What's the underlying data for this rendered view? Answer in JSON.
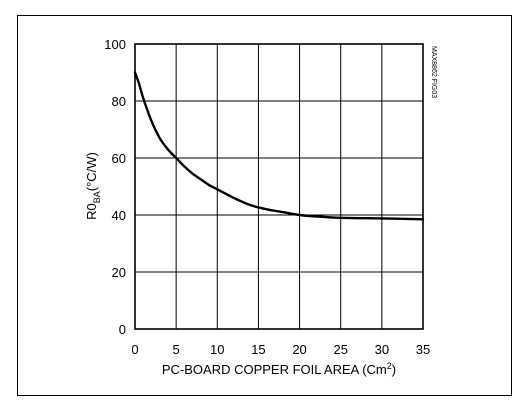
{
  "chart_data": {
    "type": "line",
    "xlabel": "PC-BOARD COPPER FOIL AREA (Cm",
    "xlabel_superscript": "2",
    "xlabel_suffix": ")",
    "ylabel_main": "R0",
    "ylabel_subscript": "BA",
    "ylabel_unit": "(°C/W)",
    "figure_code": "MAX8862 FIG03",
    "xlim": [
      0,
      35
    ],
    "ylim": [
      0,
      100
    ],
    "x_ticks": [
      0,
      5,
      10,
      15,
      20,
      25,
      30,
      35
    ],
    "y_ticks": [
      0,
      20,
      40,
      60,
      80,
      100
    ],
    "x_tick_labels": [
      "0",
      "5",
      "10",
      "15",
      "20",
      "25",
      "30",
      "35"
    ],
    "y_tick_labels": [
      "0",
      "20",
      "40",
      "60",
      "80",
      "100"
    ],
    "grid": true,
    "line_color": "#000000",
    "series": [
      {
        "x": [
          0,
          0.5,
          1,
          2,
          3,
          4,
          5,
          6,
          7,
          8,
          9,
          10,
          12,
          14,
          16,
          18,
          20,
          22,
          25,
          30,
          35
        ],
        "y": [
          90,
          86,
          81,
          73,
          67,
          63,
          60,
          57,
          54.5,
          52.5,
          50.5,
          49,
          46,
          43.5,
          42,
          41,
          40,
          39.5,
          39,
          38.8,
          38.5
        ]
      }
    ]
  }
}
